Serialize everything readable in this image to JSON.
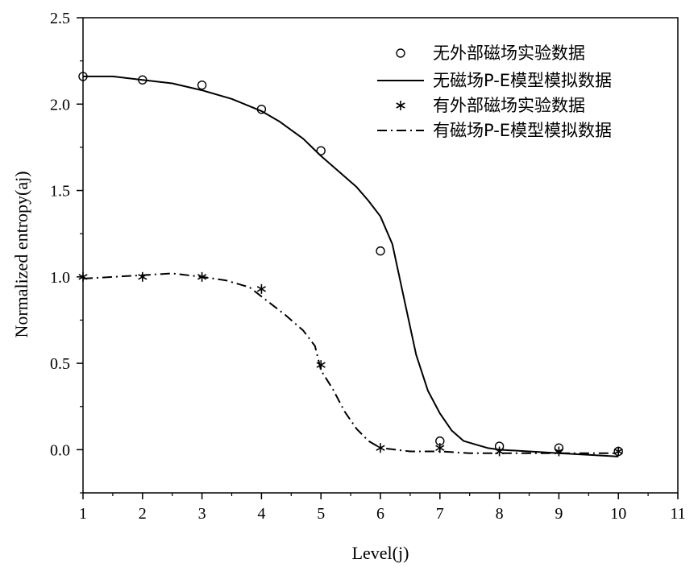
{
  "chart_data": {
    "type": "line",
    "title": "",
    "xlabel": "Level(j)",
    "ylabel": "Normalized entropy(aj)",
    "xlim": [
      1,
      11
    ],
    "ylim": [
      -0.25,
      2.5
    ],
    "x_ticks": [
      1,
      2,
      3,
      4,
      5,
      6,
      7,
      8,
      9,
      10,
      11
    ],
    "x_tick_labels": [
      "1",
      "2",
      "3",
      "4",
      "5",
      "6",
      "7",
      "8",
      "9",
      "10",
      "11"
    ],
    "y_ticks": [
      0.0,
      0.5,
      1.0,
      1.5,
      2.0,
      2.5
    ],
    "y_tick_labels": [
      "0.0",
      "0.5",
      "1.0",
      "1.5",
      "2.0",
      "2.5"
    ],
    "grid": false,
    "legend_position": "top-right",
    "series": [
      {
        "name": "无外部磁场实验数据",
        "kind": "scatter",
        "marker": "open-circle",
        "x": [
          1,
          2,
          3,
          4,
          5,
          6,
          7,
          8,
          9,
          10
        ],
        "y": [
          2.16,
          2.14,
          2.11,
          1.97,
          1.73,
          1.15,
          0.05,
          0.02,
          0.01,
          -0.01
        ]
      },
      {
        "name": "无磁场P-E模型模拟数据",
        "kind": "line",
        "style": "solid",
        "x": [
          1,
          1.5,
          2,
          2.5,
          3,
          3.5,
          4,
          4.3,
          4.7,
          5,
          5.3,
          5.6,
          5.8,
          6,
          6.2,
          6.4,
          6.6,
          6.8,
          7,
          7.2,
          7.4,
          7.6,
          7.8,
          8,
          8.5,
          9,
          9.5,
          10
        ],
        "y": [
          2.16,
          2.16,
          2.14,
          2.12,
          2.08,
          2.03,
          1.96,
          1.9,
          1.8,
          1.7,
          1.61,
          1.52,
          1.44,
          1.35,
          1.19,
          0.87,
          0.55,
          0.34,
          0.21,
          0.11,
          0.05,
          0.03,
          0.01,
          0.0,
          -0.01,
          -0.02,
          -0.03,
          -0.04
        ]
      },
      {
        "name": "有外部磁场实验数据",
        "kind": "scatter",
        "marker": "asterisk",
        "x": [
          1,
          2,
          3,
          4,
          5,
          6,
          7,
          8,
          9,
          10
        ],
        "y": [
          1.0,
          1.0,
          1.0,
          0.93,
          0.49,
          0.01,
          0.01,
          -0.01,
          -0.01,
          -0.01
        ]
      },
      {
        "name": "有磁场P-E模型模拟数据",
        "kind": "line",
        "style": "dash-dot",
        "x": [
          1,
          1.5,
          2,
          2.5,
          3,
          3.4,
          3.8,
          4.1,
          4.4,
          4.7,
          4.9,
          5.0,
          5.2,
          5.4,
          5.6,
          5.8,
          6,
          6.5,
          7,
          7.5,
          8,
          9,
          10
        ],
        "y": [
          0.99,
          1.0,
          1.01,
          1.02,
          1.0,
          0.98,
          0.94,
          0.86,
          0.78,
          0.69,
          0.6,
          0.46,
          0.35,
          0.22,
          0.12,
          0.05,
          0.01,
          -0.01,
          -0.01,
          -0.02,
          -0.02,
          -0.02,
          -0.02
        ]
      }
    ],
    "colors": {
      "line": "#000000",
      "background": "#ffffff"
    }
  }
}
